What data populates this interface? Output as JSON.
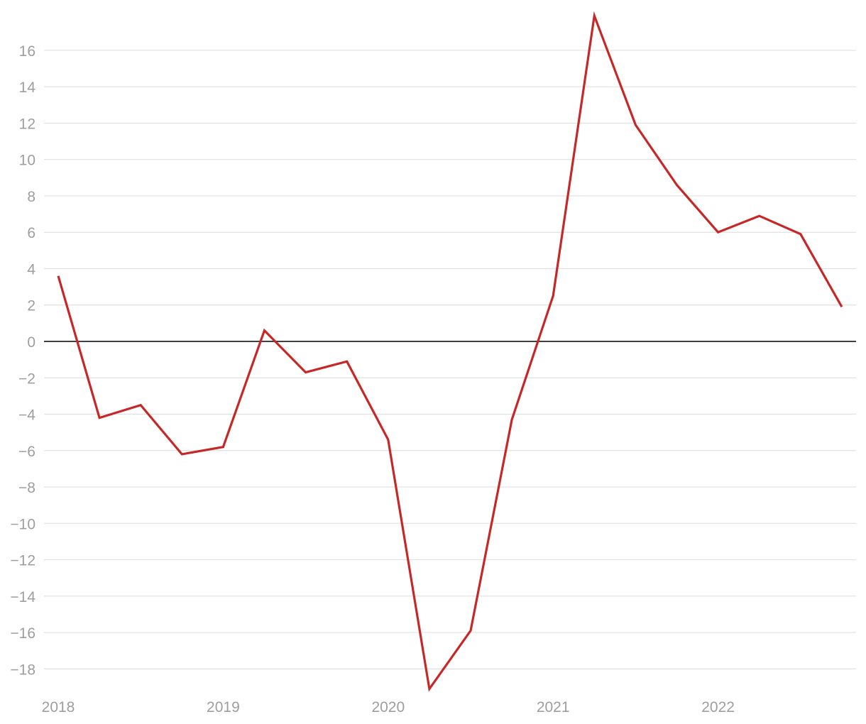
{
  "chart_data": {
    "type": "line",
    "title": "",
    "xlabel": "",
    "ylabel": "",
    "x": [
      "2018-Q1",
      "2018-Q2",
      "2018-Q3",
      "2018-Q4",
      "2019-Q1",
      "2019-Q2",
      "2019-Q3",
      "2019-Q4",
      "2020-Q1",
      "2020-Q2",
      "2020-Q3",
      "2020-Q4",
      "2021-Q1",
      "2021-Q2",
      "2021-Q3",
      "2021-Q4",
      "2022-Q1",
      "2022-Q2",
      "2022-Q3",
      "2022-Q4"
    ],
    "series": [
      {
        "values": [
          3.6,
          -4.2,
          -3.5,
          -6.2,
          -5.8,
          0.6,
          -1.7,
          -1.1,
          -5.4,
          -19.1,
          -15.9,
          -4.3,
          2.5,
          17.9,
          11.9,
          8.6,
          6.0,
          6.9,
          5.9,
          1.9
        ],
        "color": "#c62828"
      }
    ],
    "xticks": [
      "2018",
      "2019",
      "2020",
      "2021",
      "2022"
    ],
    "yticks": [
      16,
      14,
      12,
      10,
      8,
      6,
      4,
      2,
      0,
      -2,
      -4,
      -6,
      -8,
      -10,
      -12,
      -14,
      -16,
      -18
    ],
    "ylim": [
      -19.5,
      18.3
    ],
    "grid": true,
    "zero_line": true,
    "colors": {
      "line": "#c62828",
      "grid": "#e0e0e0",
      "zero": "#000000",
      "ticks": "#9e9e9e"
    }
  }
}
